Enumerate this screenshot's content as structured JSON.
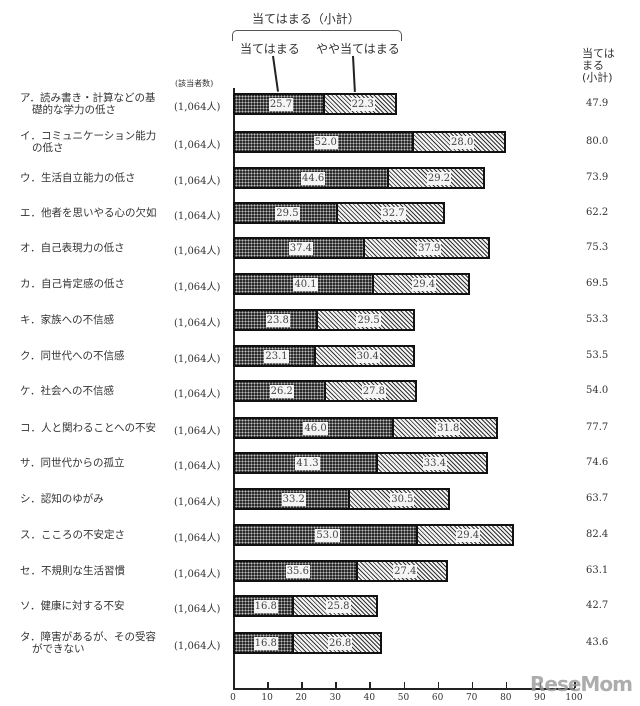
{
  "legend": {
    "subtotal_title": "当てはまる（小計）",
    "series_a": "当てはまる",
    "series_b": "やや当てはまる"
  },
  "headers": {
    "count": "(該当者数)",
    "subtotal": [
      "当ては",
      "まる",
      "(小計)"
    ]
  },
  "rows": [
    {
      "label": [
        "ア．読み書き・計算などの基",
        "礎的な学力の低さ"
      ],
      "count": "(1,064人)",
      "a": "25.7",
      "b": "22.3",
      "sub": "47.9"
    },
    {
      "label": [
        "イ．コミュニケーション能力",
        "の低さ"
      ],
      "count": "(1,064人)",
      "a": "52.0",
      "b": "28.0",
      "sub": "80.0"
    },
    {
      "label": [
        "ウ．生活自立能力の低さ"
      ],
      "count": "(1,064人)",
      "a": "44.6",
      "b": "29.2",
      "sub": "73.9"
    },
    {
      "label": [
        "エ．他者を思いやる心の欠如"
      ],
      "count": "(1,064人)",
      "a": "29.5",
      "b": "32.7",
      "sub": "62.2"
    },
    {
      "label": [
        "オ．自己表現力の低さ"
      ],
      "count": "(1,064人)",
      "a": "37.4",
      "b": "37.9",
      "sub": "75.3"
    },
    {
      "label": [
        "カ．自己肯定感の低さ"
      ],
      "count": "(1,064人)",
      "a": "40.1",
      "b": "29.4",
      "sub": "69.5"
    },
    {
      "label": [
        "キ．家族への不信感"
      ],
      "count": "(1,064人)",
      "a": "23.8",
      "b": "29.5",
      "sub": "53.3"
    },
    {
      "label": [
        "ク．同世代への不信感"
      ],
      "count": "(1,064人)",
      "a": "23.1",
      "b": "30.4",
      "sub": "53.5"
    },
    {
      "label": [
        "ケ．社会への不信感"
      ],
      "count": "(1,064人)",
      "a": "26.2",
      "b": "27.8",
      "sub": "54.0"
    },
    {
      "label": [
        "コ．人と関わることへの不安"
      ],
      "count": "(1,064人)",
      "a": "46.0",
      "b": "31.8",
      "sub": "77.7"
    },
    {
      "label": [
        "サ．同世代からの孤立"
      ],
      "count": "(1,064人)",
      "a": "41.3",
      "b": "33.4",
      "sub": "74.6"
    },
    {
      "label": [
        "シ．認知のゆがみ"
      ],
      "count": "(1,064人)",
      "a": "33.2",
      "b": "30.5",
      "sub": "63.7"
    },
    {
      "label": [
        "ス．こころの不安定さ"
      ],
      "count": "(1,064人)",
      "a": "53.0",
      "b": "29.4",
      "sub": "82.4"
    },
    {
      "label": [
        "セ．不規則な生活習慣"
      ],
      "count": "(1,064人)",
      "a": "35.6",
      "b": "27.4",
      "sub": "63.1"
    },
    {
      "label": [
        "ソ．健康に対する不安"
      ],
      "count": "(1,064人)",
      "a": "16.8",
      "b": "25.8",
      "sub": "42.7"
    },
    {
      "label": [
        "タ．障害があるが、その受容",
        "ができない"
      ],
      "count": "(1,064人)",
      "a": "16.8",
      "b": "26.8",
      "sub": "43.6"
    }
  ],
  "axis": {
    "ticks": [
      "0",
      "10",
      "20",
      "30",
      "40",
      "50",
      "60",
      "70",
      "80",
      "90",
      "100"
    ]
  },
  "watermark": "ReseMom",
  "colors": {
    "bar_a": "#2a2a2a",
    "bar_b_hatch": "#333333",
    "border": "#111111"
  },
  "chart_data": {
    "type": "bar",
    "orientation": "horizontal",
    "stacked": true,
    "title": "当てはまる（小計）",
    "categories": [
      "ア．読み書き・計算などの基礎的な学力の低さ",
      "イ．コミュニケーション能力の低さ",
      "ウ．生活自立能力の低さ",
      "エ．他者を思いやる心の欠如",
      "オ．自己表現力の低さ",
      "カ．自己肯定感の低さ",
      "キ．家族への不信感",
      "ク．同世代への不信感",
      "ケ．社会への不信感",
      "コ．人と関わることへの不安",
      "サ．同世代からの孤立",
      "シ．認知のゆがみ",
      "ス．こころの不安定さ",
      "セ．不規則な生活習慣",
      "ソ．健康に対する不安",
      "タ．障害があるが、その受容ができない"
    ],
    "series": [
      {
        "name": "当てはまる",
        "values": [
          25.7,
          52.0,
          44.6,
          29.5,
          37.4,
          40.1,
          23.8,
          23.1,
          26.2,
          46.0,
          41.3,
          33.2,
          53.0,
          35.6,
          16.8,
          16.8
        ]
      },
      {
        "name": "やや当てはまる",
        "values": [
          22.3,
          28.0,
          29.2,
          32.7,
          37.9,
          29.4,
          29.5,
          30.4,
          27.8,
          31.8,
          33.4,
          30.5,
          29.4,
          27.4,
          25.8,
          26.8
        ]
      }
    ],
    "subtotal": [
      47.9,
      80.0,
      73.9,
      62.2,
      75.3,
      69.5,
      53.3,
      53.5,
      54.0,
      77.7,
      74.6,
      63.7,
      82.4,
      63.1,
      42.7,
      43.6
    ],
    "counts": "1,064人 each",
    "xlabel": "",
    "ylabel": "",
    "xlim": [
      0,
      100
    ],
    "xticks": [
      0,
      10,
      20,
      30,
      40,
      50,
      60,
      70,
      80,
      90,
      100
    ],
    "grid": false,
    "legend_position": "top"
  }
}
